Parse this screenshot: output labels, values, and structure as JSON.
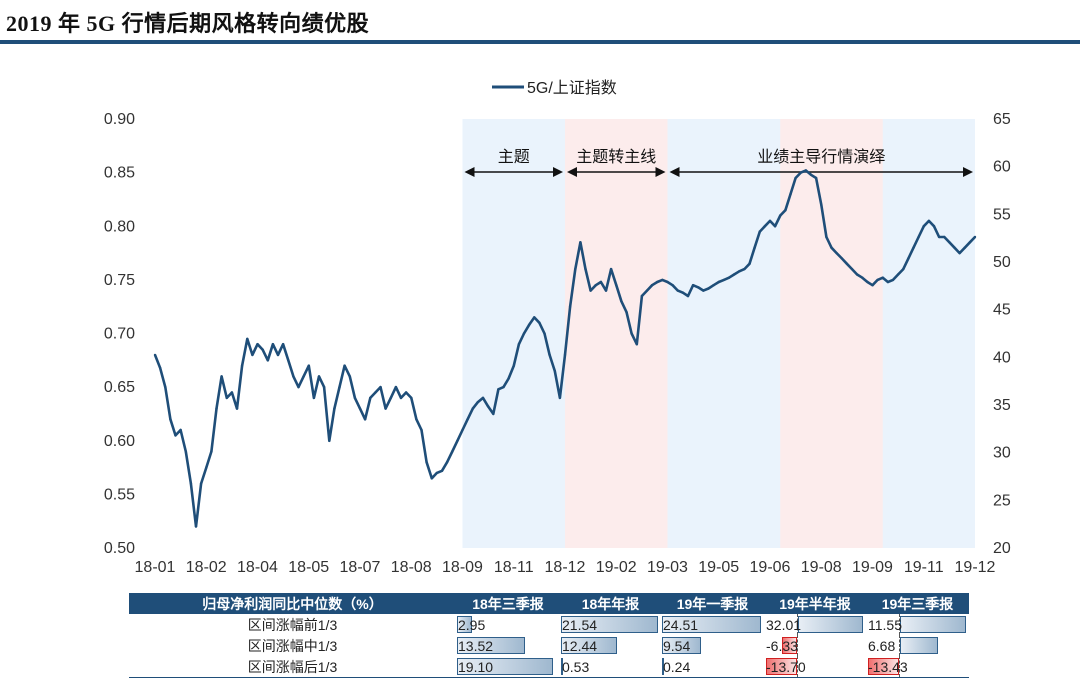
{
  "title": "2019 年 5G 行情后期风格转向绩优股",
  "chart_data": {
    "type": "line",
    "legend": "5G/上证指数",
    "legend_position": "top-center",
    "x_ticks": [
      "18-01",
      "18-02",
      "18-04",
      "18-05",
      "18-07",
      "18-08",
      "18-09",
      "18-11",
      "18-12",
      "19-02",
      "19-03",
      "19-05",
      "19-06",
      "19-08",
      "19-09",
      "19-11",
      "19-12"
    ],
    "left_axis": {
      "min": 0.5,
      "max": 0.9,
      "ticks": [
        "0.90",
        "0.85",
        "0.80",
        "0.75",
        "0.70",
        "0.65",
        "0.60",
        "0.55",
        "0.50"
      ]
    },
    "right_axis": {
      "min": 20,
      "max": 65,
      "ticks": [
        "65",
        "60",
        "55",
        "50",
        "45",
        "40",
        "35",
        "30",
        "25",
        "20"
      ]
    },
    "phases": [
      {
        "label": "主题",
        "start": 6.0,
        "end": 8.0,
        "color": "#eaf3fc"
      },
      {
        "label": "主题转主线",
        "start": 8.0,
        "end": 10.0,
        "color": "#fcecec"
      },
      {
        "label": "业绩主导行情演绎",
        "start": 10.0,
        "end": 16.0,
        "color": "#eaf3fc"
      }
    ],
    "pink_band": {
      "start": 12.2,
      "end": 14.2,
      "color": "#fcecec"
    },
    "series": [
      {
        "name": "5G/上证指数",
        "x": [
          0.0,
          0.1,
          0.2,
          0.3,
          0.4,
          0.5,
          0.6,
          0.7,
          0.8,
          0.9,
          1.0,
          1.1,
          1.2,
          1.3,
          1.4,
          1.5,
          1.6,
          1.7,
          1.8,
          1.9,
          2.0,
          2.1,
          2.2,
          2.3,
          2.4,
          2.5,
          2.6,
          2.7,
          2.8,
          2.9,
          3.0,
          3.1,
          3.2,
          3.3,
          3.4,
          3.5,
          3.6,
          3.7,
          3.8,
          3.9,
          4.0,
          4.1,
          4.2,
          4.3,
          4.4,
          4.5,
          4.6,
          4.7,
          4.8,
          4.9,
          5.0,
          5.1,
          5.2,
          5.3,
          5.4,
          5.5,
          5.6,
          5.7,
          5.8,
          5.9,
          6.0,
          6.1,
          6.2,
          6.3,
          6.4,
          6.5,
          6.6,
          6.7,
          6.8,
          6.9,
          7.0,
          7.1,
          7.2,
          7.3,
          7.4,
          7.5,
          7.6,
          7.7,
          7.8,
          7.9,
          8.0,
          8.1,
          8.2,
          8.3,
          8.4,
          8.5,
          8.6,
          8.7,
          8.8,
          8.9,
          9.0,
          9.1,
          9.2,
          9.3,
          9.4,
          9.5,
          9.6,
          9.7,
          9.8,
          9.9,
          10.0,
          10.1,
          10.2,
          10.3,
          10.4,
          10.5,
          10.6,
          10.7,
          10.8,
          10.9,
          11.0,
          11.1,
          11.2,
          11.3,
          11.4,
          11.5,
          11.6,
          11.7,
          11.8,
          11.9,
          12.0,
          12.1,
          12.2,
          12.3,
          12.4,
          12.5,
          12.6,
          12.7,
          12.8,
          12.9,
          13.0,
          13.1,
          13.2,
          13.3,
          13.4,
          13.5,
          13.6,
          13.7,
          13.8,
          13.9,
          14.0,
          14.1,
          14.2,
          14.3,
          14.4,
          14.5,
          14.6,
          14.7,
          14.8,
          14.9,
          15.0,
          15.1,
          15.2,
          15.3,
          15.4,
          15.5,
          15.6,
          15.7,
          15.8,
          15.9,
          16.0
        ],
        "values": [
          0.68,
          0.668,
          0.65,
          0.62,
          0.605,
          0.61,
          0.59,
          0.56,
          0.52,
          0.56,
          0.575,
          0.59,
          0.63,
          0.66,
          0.64,
          0.645,
          0.63,
          0.67,
          0.695,
          0.68,
          0.69,
          0.685,
          0.675,
          0.69,
          0.68,
          0.69,
          0.675,
          0.66,
          0.65,
          0.66,
          0.67,
          0.64,
          0.66,
          0.65,
          0.6,
          0.63,
          0.65,
          0.67,
          0.66,
          0.64,
          0.63,
          0.62,
          0.64,
          0.645,
          0.65,
          0.63,
          0.64,
          0.65,
          0.64,
          0.645,
          0.64,
          0.62,
          0.61,
          0.58,
          0.565,
          0.57,
          0.572,
          0.58,
          0.59,
          0.6,
          0.61,
          0.62,
          0.63,
          0.636,
          0.64,
          0.632,
          0.625,
          0.648,
          0.65,
          0.658,
          0.67,
          0.69,
          0.7,
          0.708,
          0.715,
          0.71,
          0.7,
          0.68,
          0.665,
          0.64,
          0.68,
          0.725,
          0.76,
          0.785,
          0.76,
          0.74,
          0.745,
          0.748,
          0.74,
          0.76,
          0.745,
          0.73,
          0.72,
          0.7,
          0.69,
          0.735,
          0.74,
          0.745,
          0.748,
          0.75,
          0.748,
          0.745,
          0.74,
          0.738,
          0.735,
          0.745,
          0.743,
          0.74,
          0.742,
          0.745,
          0.748,
          0.75,
          0.752,
          0.755,
          0.758,
          0.76,
          0.765,
          0.78,
          0.795,
          0.8,
          0.805,
          0.8,
          0.81,
          0.815,
          0.83,
          0.845,
          0.85,
          0.852,
          0.848,
          0.845,
          0.82,
          0.79,
          0.78,
          0.775,
          0.77,
          0.765,
          0.76,
          0.755,
          0.752,
          0.748,
          0.745,
          0.75,
          0.752,
          0.748,
          0.75,
          0.755,
          0.76,
          0.77,
          0.78,
          0.79,
          0.8,
          0.805,
          0.8,
          0.79,
          0.79,
          0.785,
          0.78,
          0.775,
          0.78,
          0.785,
          0.79
        ],
        "color": "#1f4e79"
      }
    ]
  },
  "table": {
    "headers": [
      "归母净利润同比中位数（%）",
      "18年三季报",
      "18年年报",
      "19年一季报",
      "19年半年报",
      "19年三季报"
    ],
    "rows": [
      {
        "label": "区间涨幅前1/3",
        "values": [
          "2.95",
          "21.54",
          "24.51",
          "32.01",
          "11.55"
        ],
        "nums": [
          2.95,
          21.54,
          24.51,
          32.01,
          11.55
        ]
      },
      {
        "label": "区间涨幅中1/3",
        "values": [
          "13.52",
          "12.44",
          "9.54",
          "-6.33",
          "6.68"
        ],
        "nums": [
          13.52,
          12.44,
          9.54,
          -6.33,
          6.68
        ]
      },
      {
        "label": "区间涨幅后1/3",
        "values": [
          "19.10",
          "0.53",
          "0.24",
          "-13.70",
          "-13.43"
        ],
        "nums": [
          19.1,
          0.53,
          0.24,
          -13.7,
          -13.43
        ]
      }
    ],
    "scale_max": [
      20.0,
      21.54,
      24.51,
      32.01,
      11.55
    ]
  },
  "colors": {
    "accent": "#1f4e79",
    "positive": "#2f5f8a",
    "negative": "#d02020",
    "band_blue": "#eaf3fc",
    "band_pink": "#fcecec"
  }
}
